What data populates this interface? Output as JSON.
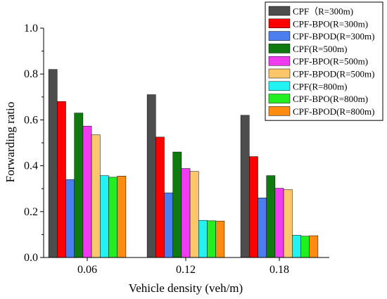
{
  "chart_data": {
    "type": "bar",
    "title": "",
    "xlabel": "Vehicle density (veh/m)",
    "ylabel": "Forwarding ratio",
    "categories": [
      "0.06",
      "0.12",
      "0.18"
    ],
    "ylim": [
      0.0,
      1.0
    ],
    "yticks": [
      "0.0",
      "0.2",
      "0.4",
      "0.6",
      "0.8",
      "1.0"
    ],
    "grid": false,
    "legend_position": "top-right",
    "series": [
      {
        "name": "CPF（R=300m)",
        "color": "#4d4d4d",
        "values": [
          0.82,
          0.71,
          0.62
        ]
      },
      {
        "name": "CPF-BPO(R=300m)",
        "color": "#ff0000",
        "values": [
          0.68,
          0.525,
          0.44
        ]
      },
      {
        "name": "CPF-BPOD(R=300m)",
        "color": "#4c7ef0",
        "values": [
          0.34,
          0.282,
          0.26
        ]
      },
      {
        "name": "CPF(R=500m)",
        "color": "#0f7a0f",
        "values": [
          0.63,
          0.46,
          0.357
        ]
      },
      {
        "name": "CPF-BPO(R=500m)",
        "color": "#f03cf0",
        "values": [
          0.573,
          0.388,
          0.302
        ]
      },
      {
        "name": "CPF-BPOD(R=500m)",
        "color": "#fcc76a",
        "values": [
          0.535,
          0.375,
          0.296
        ]
      },
      {
        "name": "CPF(R=800m)",
        "color": "#22f2f2",
        "values": [
          0.357,
          0.162,
          0.097
        ]
      },
      {
        "name": "CPF-BPO(R=800m)",
        "color": "#22ee22",
        "values": [
          0.35,
          0.16,
          0.093
        ]
      },
      {
        "name": "CPF-BPOD(R=800m)",
        "color": "#ff8c10",
        "values": [
          0.355,
          0.159,
          0.095
        ]
      }
    ]
  }
}
